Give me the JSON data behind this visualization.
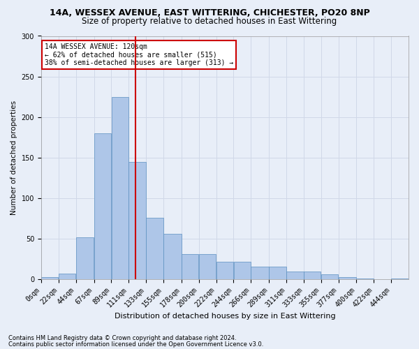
{
  "title1": "14A, WESSEX AVENUE, EAST WITTERING, CHICHESTER, PO20 8NP",
  "title2": "Size of property relative to detached houses in East Wittering",
  "xlabel": "Distribution of detached houses by size in East Wittering",
  "ylabel": "Number of detached properties",
  "footer1": "Contains HM Land Registry data © Crown copyright and database right 2024.",
  "footer2": "Contains public sector information licensed under the Open Government Licence v3.0.",
  "annotation_line1": "14A WESSEX AVENUE: 120sqm",
  "annotation_line2": "← 62% of detached houses are smaller (515)",
  "annotation_line3": "38% of semi-detached houses are larger (313) →",
  "property_size_sqm": 120,
  "bin_edges": [
    0,
    22,
    44,
    67,
    89,
    111,
    133,
    155,
    178,
    200,
    222,
    244,
    266,
    289,
    311,
    333,
    355,
    377,
    400,
    422,
    444
  ],
  "bar_heights": [
    3,
    7,
    52,
    180,
    225,
    145,
    76,
    56,
    31,
    31,
    22,
    22,
    16,
    16,
    10,
    10,
    6,
    3,
    1,
    0,
    1
  ],
  "bar_color": "#aec6e8",
  "bar_edge_color": "#5a8fc0",
  "vline_color": "#cc0000",
  "vline_x": 120,
  "annotation_box_edge": "#cc0000",
  "grid_color": "#d0d8e8",
  "bg_color": "#e8eef8",
  "ylim": [
    0,
    300
  ],
  "yticks": [
    0,
    50,
    100,
    150,
    200,
    250,
    300
  ],
  "title1_fontsize": 9,
  "title2_fontsize": 8.5,
  "xlabel_fontsize": 8,
  "ylabel_fontsize": 7.5,
  "tick_fontsize": 7,
  "footer_fontsize": 6
}
